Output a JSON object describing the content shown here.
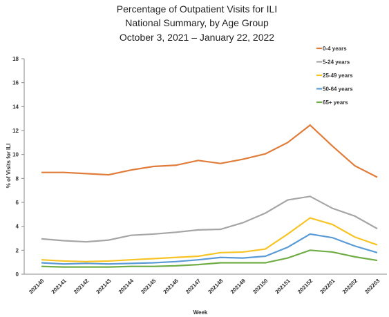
{
  "chart_data": {
    "type": "line",
    "title": [
      "Percentage of Outpatient Visits for ILI",
      "National Summary, by Age Group",
      "October 3, 2021 – January 22, 2022"
    ],
    "x_label": "Week",
    "y_label": "% of Visits for ILI",
    "categories": [
      "202140",
      "202141",
      "202142",
      "202143",
      "202144",
      "202145",
      "202146",
      "202147",
      "202148",
      "202149",
      "202150",
      "202151",
      "202152",
      "202201",
      "202202",
      "202203"
    ],
    "ylim": [
      0,
      18
    ],
    "yticks": [
      0,
      2,
      4,
      6,
      8,
      10,
      12,
      14,
      16,
      18
    ],
    "grid": false,
    "series": [
      {
        "name": "0-4 years",
        "color": "#e07b39",
        "values": [
          8.5,
          8.5,
          8.4,
          8.3,
          8.7,
          9.0,
          9.1,
          9.5,
          9.25,
          9.6,
          10.05,
          11.0,
          12.45,
          10.7,
          9.05,
          8.1
        ]
      },
      {
        "name": "5-24 years",
        "color": "#a5a5a5",
        "values": [
          2.95,
          2.8,
          2.7,
          2.85,
          3.25,
          3.35,
          3.5,
          3.7,
          3.75,
          4.3,
          5.1,
          6.2,
          6.5,
          5.5,
          4.85,
          3.8
        ]
      },
      {
        "name": "25-49 years",
        "color": "#f7c325",
        "values": [
          1.2,
          1.1,
          1.05,
          1.1,
          1.2,
          1.3,
          1.4,
          1.5,
          1.8,
          1.85,
          2.1,
          3.35,
          4.7,
          4.15,
          3.1,
          2.45
        ]
      },
      {
        "name": "50-64 years",
        "color": "#5b9bd5",
        "values": [
          0.95,
          0.85,
          0.9,
          0.85,
          0.9,
          0.95,
          1.05,
          1.2,
          1.4,
          1.35,
          1.5,
          2.25,
          3.35,
          3.05,
          2.35,
          1.8
        ]
      },
      {
        "name": "65+ years",
        "color": "#70ad47",
        "values": [
          0.65,
          0.6,
          0.6,
          0.6,
          0.65,
          0.65,
          0.7,
          0.8,
          0.95,
          0.95,
          0.95,
          1.35,
          2.0,
          1.85,
          1.45,
          1.15
        ]
      }
    ]
  }
}
